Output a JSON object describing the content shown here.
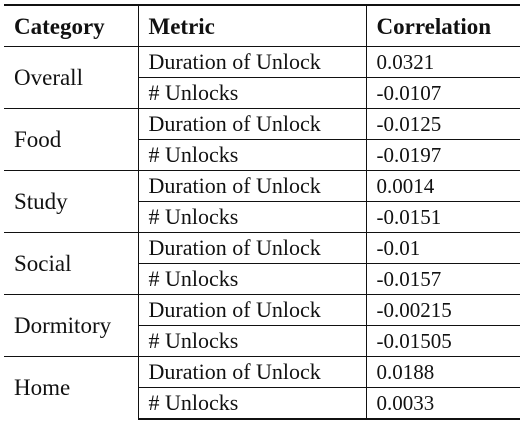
{
  "table": {
    "headers": {
      "category": "Category",
      "metric": "Metric",
      "correlation": "Correlation"
    },
    "groups": [
      {
        "category": "Overall",
        "rows": [
          {
            "metric": "Duration of Unlock",
            "correlation": "0.0321"
          },
          {
            "metric": "# Unlocks",
            "correlation": "-0.0107"
          }
        ]
      },
      {
        "category": "Food",
        "rows": [
          {
            "metric": "Duration of Unlock",
            "correlation": "-0.0125"
          },
          {
            "metric": "# Unlocks",
            "correlation": "-0.0197"
          }
        ]
      },
      {
        "category": "Study",
        "rows": [
          {
            "metric": "Duration of Unlock",
            "correlation": "0.0014"
          },
          {
            "metric": "# Unlocks",
            "correlation": "-0.0151"
          }
        ]
      },
      {
        "category": "Social",
        "rows": [
          {
            "metric": "Duration of Unlock",
            "correlation": "-0.01"
          },
          {
            "metric": "# Unlocks",
            "correlation": "-0.0157"
          }
        ]
      },
      {
        "category": "Dormitory",
        "rows": [
          {
            "metric": "Duration of Unlock",
            "correlation": "-0.00215"
          },
          {
            "metric": "# Unlocks",
            "correlation": "-0.01505"
          }
        ]
      },
      {
        "category": "Home",
        "rows": [
          {
            "metric": "Duration of Unlock",
            "correlation": "0.0188"
          },
          {
            "metric": "# Unlocks",
            "correlation": "0.0033"
          }
        ]
      }
    ]
  }
}
